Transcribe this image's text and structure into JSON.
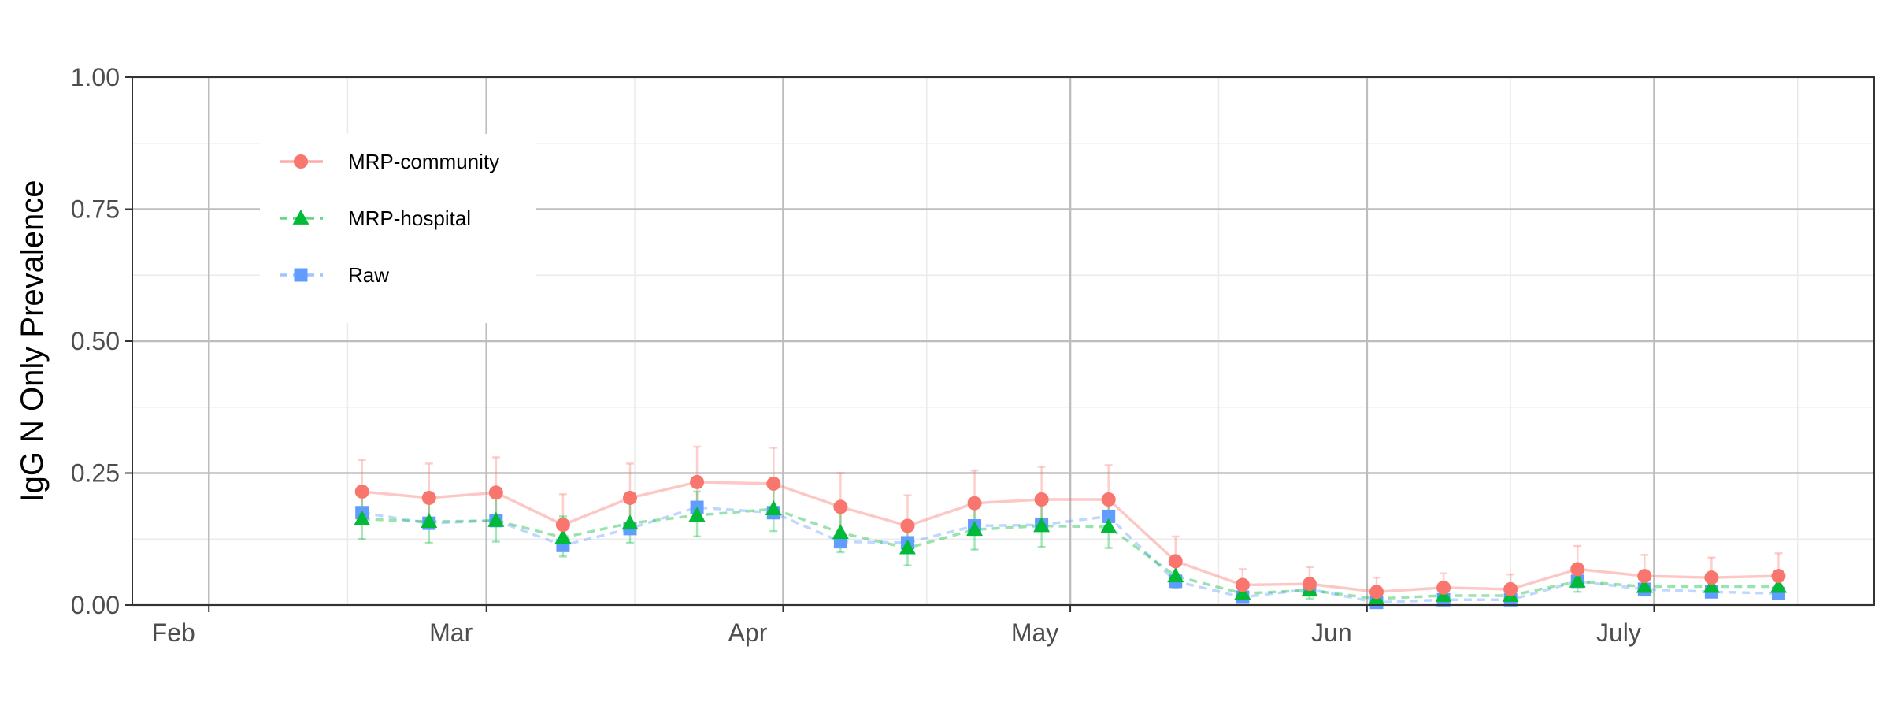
{
  "chart_data": {
    "type": "line",
    "title": "",
    "xlabel": "",
    "ylabel": "IgG N Only Prevalence",
    "x_tick_labels": [
      "Feb",
      "Mar",
      "Apr",
      "May",
      "Jun",
      "July"
    ],
    "x_tick_dates": [
      "2020-02-01",
      "2020-03-01",
      "2020-04-01",
      "2020-05-01",
      "2020-06-01",
      "2020-07-01"
    ],
    "xlim": [
      "2020-01-24",
      "2020-07-24"
    ],
    "ylim": [
      0,
      1
    ],
    "y_ticks": [
      0,
      0.25,
      0.5,
      0.75,
      1
    ],
    "y_tick_labels": [
      "0.00",
      "0.25",
      "0.50",
      "0.75",
      "1.00"
    ],
    "grid": true,
    "legend_position": "top-left",
    "x": [
      "2020-02-17",
      "2020-02-24",
      "2020-03-02",
      "2020-03-09",
      "2020-03-16",
      "2020-03-23",
      "2020-03-31",
      "2020-04-07",
      "2020-04-14",
      "2020-04-21",
      "2020-04-28",
      "2020-05-05",
      "2020-05-12",
      "2020-05-19",
      "2020-05-26",
      "2020-06-02",
      "2020-06-09",
      "2020-06-16",
      "2020-06-23",
      "2020-06-30",
      "2020-07-07",
      "2020-07-14"
    ],
    "series": [
      {
        "name": "MRP-community",
        "color": "#F8766D",
        "marker": "circle",
        "line_style": "solid",
        "values": [
          0.215,
          0.203,
          0.213,
          0.152,
          0.203,
          0.233,
          0.23,
          0.186,
          0.15,
          0.193,
          0.2,
          0.2,
          0.083,
          0.038,
          0.04,
          0.025,
          0.033,
          0.03,
          0.068,
          0.055,
          0.052,
          0.055
        ],
        "lower": [
          0.16,
          0.15,
          0.15,
          0.105,
          0.15,
          0.18,
          0.175,
          0.135,
          0.105,
          0.145,
          0.15,
          0.15,
          0.05,
          0.018,
          0.018,
          0.008,
          0.012,
          0.01,
          0.035,
          0.028,
          0.025,
          0.028
        ],
        "upper": [
          0.275,
          0.268,
          0.28,
          0.21,
          0.268,
          0.3,
          0.298,
          0.25,
          0.208,
          0.255,
          0.262,
          0.265,
          0.13,
          0.068,
          0.072,
          0.052,
          0.06,
          0.058,
          0.112,
          0.095,
          0.09,
          0.098
        ]
      },
      {
        "name": "MRP-hospital",
        "color": "#00BA38",
        "marker": "triangle",
        "line_style": "dashed",
        "values": [
          0.163,
          0.158,
          0.16,
          0.128,
          0.155,
          0.17,
          0.182,
          0.137,
          0.108,
          0.143,
          0.15,
          0.148,
          0.055,
          0.022,
          0.028,
          0.012,
          0.018,
          0.018,
          0.045,
          0.035,
          0.035,
          0.035
        ],
        "lower": [
          0.125,
          0.118,
          0.12,
          0.092,
          0.118,
          0.13,
          0.14,
          0.1,
          0.075,
          0.105,
          0.11,
          0.108,
          0.032,
          0.008,
          0.012,
          0.003,
          0.006,
          0.006,
          0.025,
          0.018,
          0.018,
          0.018
        ],
        "upper": [
          0.205,
          0.2,
          0.205,
          0.168,
          0.198,
          0.215,
          0.228,
          0.178,
          0.145,
          0.185,
          0.195,
          0.192,
          0.085,
          0.042,
          0.05,
          0.028,
          0.035,
          0.035,
          0.07,
          0.058,
          0.058,
          0.058
        ]
      },
      {
        "name": "Raw",
        "color": "#619CFF",
        "marker": "square",
        "line_style": "dashed",
        "values": [
          0.175,
          0.155,
          0.16,
          0.113,
          0.145,
          0.185,
          0.175,
          0.12,
          0.118,
          0.15,
          0.152,
          0.168,
          0.045,
          0.015,
          0.03,
          0.005,
          0.01,
          0.01,
          0.045,
          0.03,
          0.025,
          0.022
        ],
        "lower": [],
        "upper": []
      }
    ]
  }
}
